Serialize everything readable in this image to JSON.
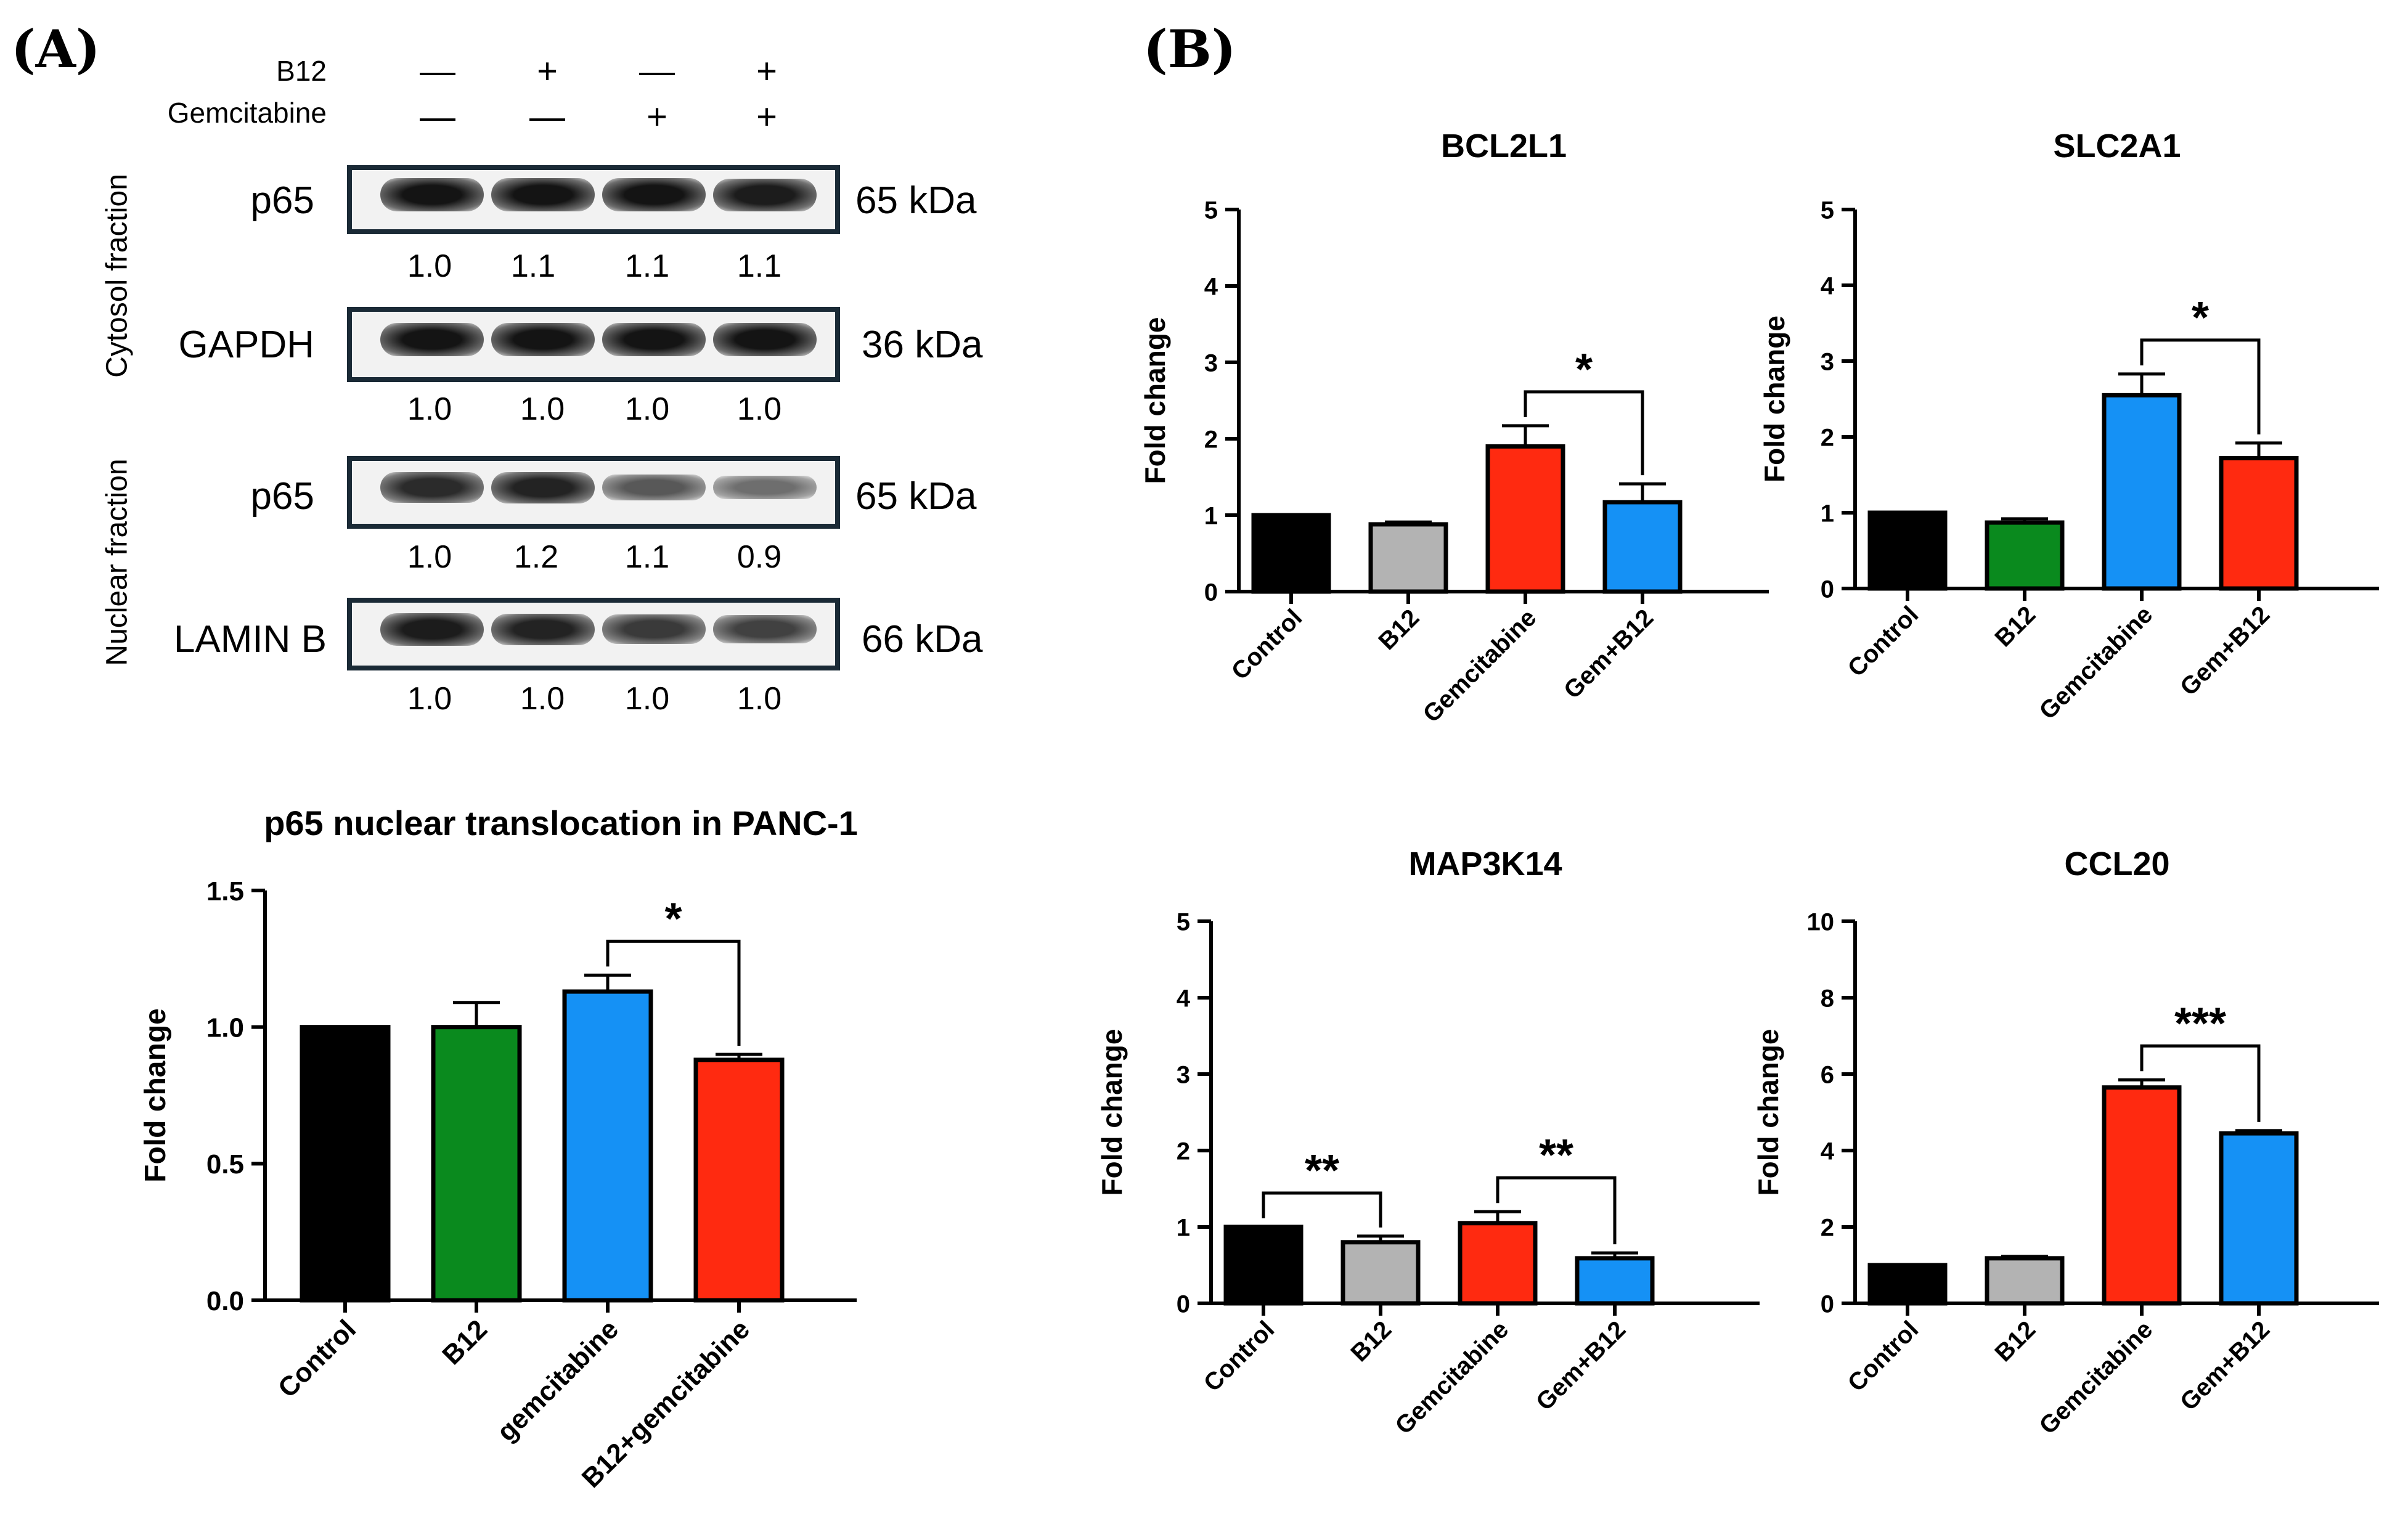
{
  "panels": {
    "a": "(A)",
    "b": "(B)"
  },
  "western_blot": {
    "treatments": [
      {
        "name": "B12",
        "signs": [
          "—",
          "+",
          "—",
          "+"
        ]
      },
      {
        "name": "Gemcitabine",
        "signs": [
          "—",
          "—",
          "+",
          "+"
        ]
      }
    ],
    "fractions": {
      "cytosol": "Cytosol fraction",
      "nuclear": "Nuclear fraction"
    },
    "blots": [
      {
        "protein": "p65",
        "size": "65 kDa",
        "quant": [
          "1.0",
          "1.1",
          "1.1",
          "1.1"
        ],
        "intensity": [
          1.0,
          1.0,
          1.0,
          0.95
        ]
      },
      {
        "protein": "GAPDH",
        "size": "36 kDa",
        "quant": [
          "1.0",
          "1.0",
          "1.0",
          "1.0"
        ],
        "intensity": [
          1.0,
          1.0,
          1.0,
          1.0
        ]
      },
      {
        "protein": "p65",
        "size": "65 kDa",
        "quant": [
          "1.0",
          "1.2",
          "1.1",
          "0.9"
        ],
        "intensity": [
          0.85,
          0.9,
          0.55,
          0.4
        ]
      },
      {
        "protein": "LAMIN B",
        "size": "66 kDa",
        "quant": [
          "1.0",
          "1.0",
          "1.0",
          "1.0"
        ],
        "intensity": [
          0.95,
          0.9,
          0.75,
          0.7
        ]
      }
    ]
  },
  "colors": {
    "black": "#000000",
    "green": "#0a8a1e",
    "blue": "#1591f5",
    "red": "#ff2a10",
    "gray": "#b3b3b3"
  },
  "chart_data": [
    {
      "id": "p65",
      "type": "bar",
      "title": "p65 nuclear translocation in PANC-1",
      "ylabel": "Fold change",
      "categories": [
        "Control",
        "B12",
        "gemcitabine",
        "B12+gemcitabine"
      ],
      "values": [
        1.0,
        1.0,
        1.13,
        0.88
      ],
      "errors": [
        0,
        0.09,
        0.06,
        0.02
      ],
      "colors": [
        "#000000",
        "#0a8a1e",
        "#1591f5",
        "#ff2a10"
      ],
      "ylim": [
        0,
        1.5
      ],
      "ticks": [
        0.0,
        0.5,
        1.0,
        1.5
      ],
      "tick_labels": [
        "0.0",
        "0.5",
        "1.0",
        "1.5"
      ],
      "significance": [
        {
          "from": 2,
          "to": 3,
          "label": "*"
        }
      ]
    },
    {
      "id": "bcl2l1",
      "type": "bar",
      "title": "BCL2L1",
      "ylabel": "Fold change",
      "categories": [
        "Control",
        "B12",
        "Gemcitabine",
        "Gem+B12"
      ],
      "values": [
        1.0,
        0.88,
        1.9,
        1.17
      ],
      "errors": [
        0,
        0.03,
        0.27,
        0.24
      ],
      "colors": [
        "#000000",
        "#b3b3b3",
        "#ff2a10",
        "#1591f5"
      ],
      "ylim": [
        0,
        5
      ],
      "ticks": [
        0,
        1,
        2,
        3,
        4,
        5
      ],
      "tick_labels": [
        "0",
        "1",
        "2",
        "3",
        "4",
        "5"
      ],
      "significance": [
        {
          "from": 2,
          "to": 3,
          "label": "*"
        }
      ]
    },
    {
      "id": "slc2a1",
      "type": "bar",
      "title": "SLC2A1",
      "ylabel": "Fold change",
      "categories": [
        "Control",
        "B12",
        "Gemcitabine",
        "Gem+B12"
      ],
      "values": [
        1.0,
        0.87,
        2.55,
        1.72
      ],
      "errors": [
        0,
        0.05,
        0.28,
        0.2
      ],
      "colors": [
        "#000000",
        "#0a8a1e",
        "#1591f5",
        "#ff2a10"
      ],
      "ylim": [
        0,
        5
      ],
      "ticks": [
        0,
        1,
        2,
        3,
        4,
        5
      ],
      "tick_labels": [
        "0",
        "1",
        "2",
        "3",
        "4",
        "5"
      ],
      "significance": [
        {
          "from": 2,
          "to": 3,
          "label": "*"
        }
      ]
    },
    {
      "id": "map3k14",
      "type": "bar",
      "title": "MAP3K14",
      "ylabel": "Fold change",
      "categories": [
        "Control",
        "B12",
        "Gemcitabine",
        "Gem+B12"
      ],
      "values": [
        1.0,
        0.8,
        1.05,
        0.59
      ],
      "errors": [
        0,
        0.08,
        0.15,
        0.07
      ],
      "colors": [
        "#000000",
        "#b3b3b3",
        "#ff2a10",
        "#1591f5"
      ],
      "ylim": [
        0,
        5
      ],
      "ticks": [
        0,
        1,
        2,
        3,
        4,
        5
      ],
      "tick_labels": [
        "0",
        "1",
        "2",
        "3",
        "4",
        "5"
      ],
      "significance": [
        {
          "from": 0,
          "to": 1,
          "label": "**"
        },
        {
          "from": 2,
          "to": 3,
          "label": "**"
        }
      ]
    },
    {
      "id": "ccl20",
      "type": "bar",
      "title": "CCL20",
      "ylabel": "Fold change",
      "categories": [
        "Control",
        "B12",
        "Gemcitabine",
        "Gem+B12"
      ],
      "values": [
        1.0,
        1.18,
        5.65,
        4.45
      ],
      "errors": [
        0,
        0.05,
        0.2,
        0.07
      ],
      "colors": [
        "#000000",
        "#b3b3b3",
        "#ff2a10",
        "#1591f5"
      ],
      "ylim": [
        0,
        10
      ],
      "ticks": [
        0,
        2,
        4,
        6,
        8,
        10
      ],
      "tick_labels": [
        "0",
        "2",
        "4",
        "6",
        "8",
        "10"
      ],
      "significance": [
        {
          "from": 2,
          "to": 3,
          "label": "***"
        }
      ]
    }
  ]
}
